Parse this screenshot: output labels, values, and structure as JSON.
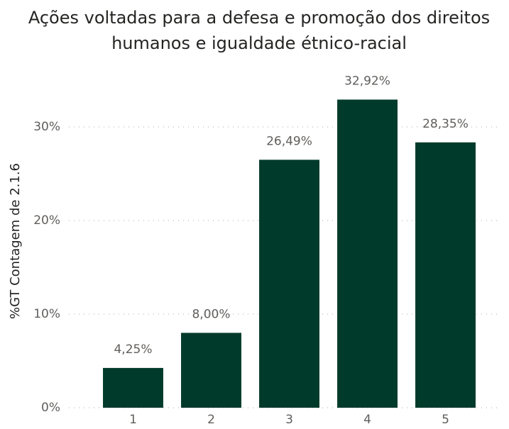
{
  "chart_data": {
    "type": "bar",
    "title": [
      "Ações voltadas para a defesa e promoção dos direitos",
      "humanos e igualdade étnico-racial"
    ],
    "y_label": "%GT Contagem de 2.1.6",
    "categories": [
      "1",
      "2",
      "3",
      "4",
      "5"
    ],
    "values": [
      4.25,
      8.0,
      26.49,
      32.92,
      28.35
    ],
    "value_labels": [
      "4,25%",
      "8,00%",
      "26,49%",
      "32,92%",
      "28,35%"
    ],
    "color": "#003a2a",
    "ylim": [
      0,
      35
    ],
    "yticks": [
      {
        "value": 0,
        "label": "0%"
      },
      {
        "value": 10,
        "label": "10%"
      },
      {
        "value": 20,
        "label": "20%"
      },
      {
        "value": 30,
        "label": "30%"
      }
    ],
    "grid": true
  }
}
